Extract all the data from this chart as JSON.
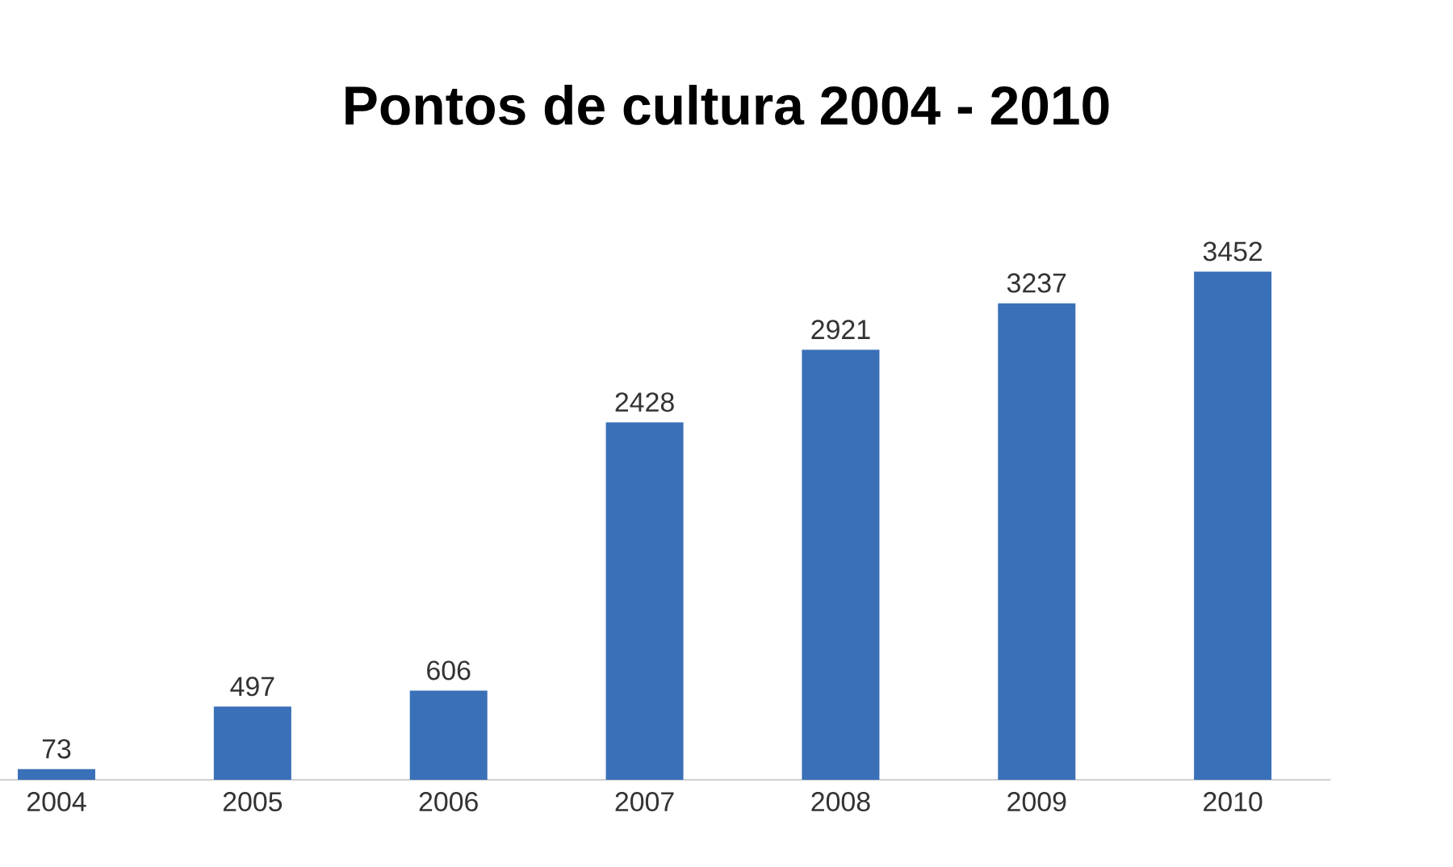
{
  "chart_data": {
    "type": "bar",
    "title": "Pontos de cultura 2004 - 2010",
    "categories": [
      "2004",
      "2005",
      "2006",
      "2007",
      "2008",
      "2009",
      "2010"
    ],
    "values": [
      73,
      497,
      606,
      2428,
      2921,
      3237,
      3452
    ],
    "color": "#3a70b8",
    "data_labels": true
  }
}
